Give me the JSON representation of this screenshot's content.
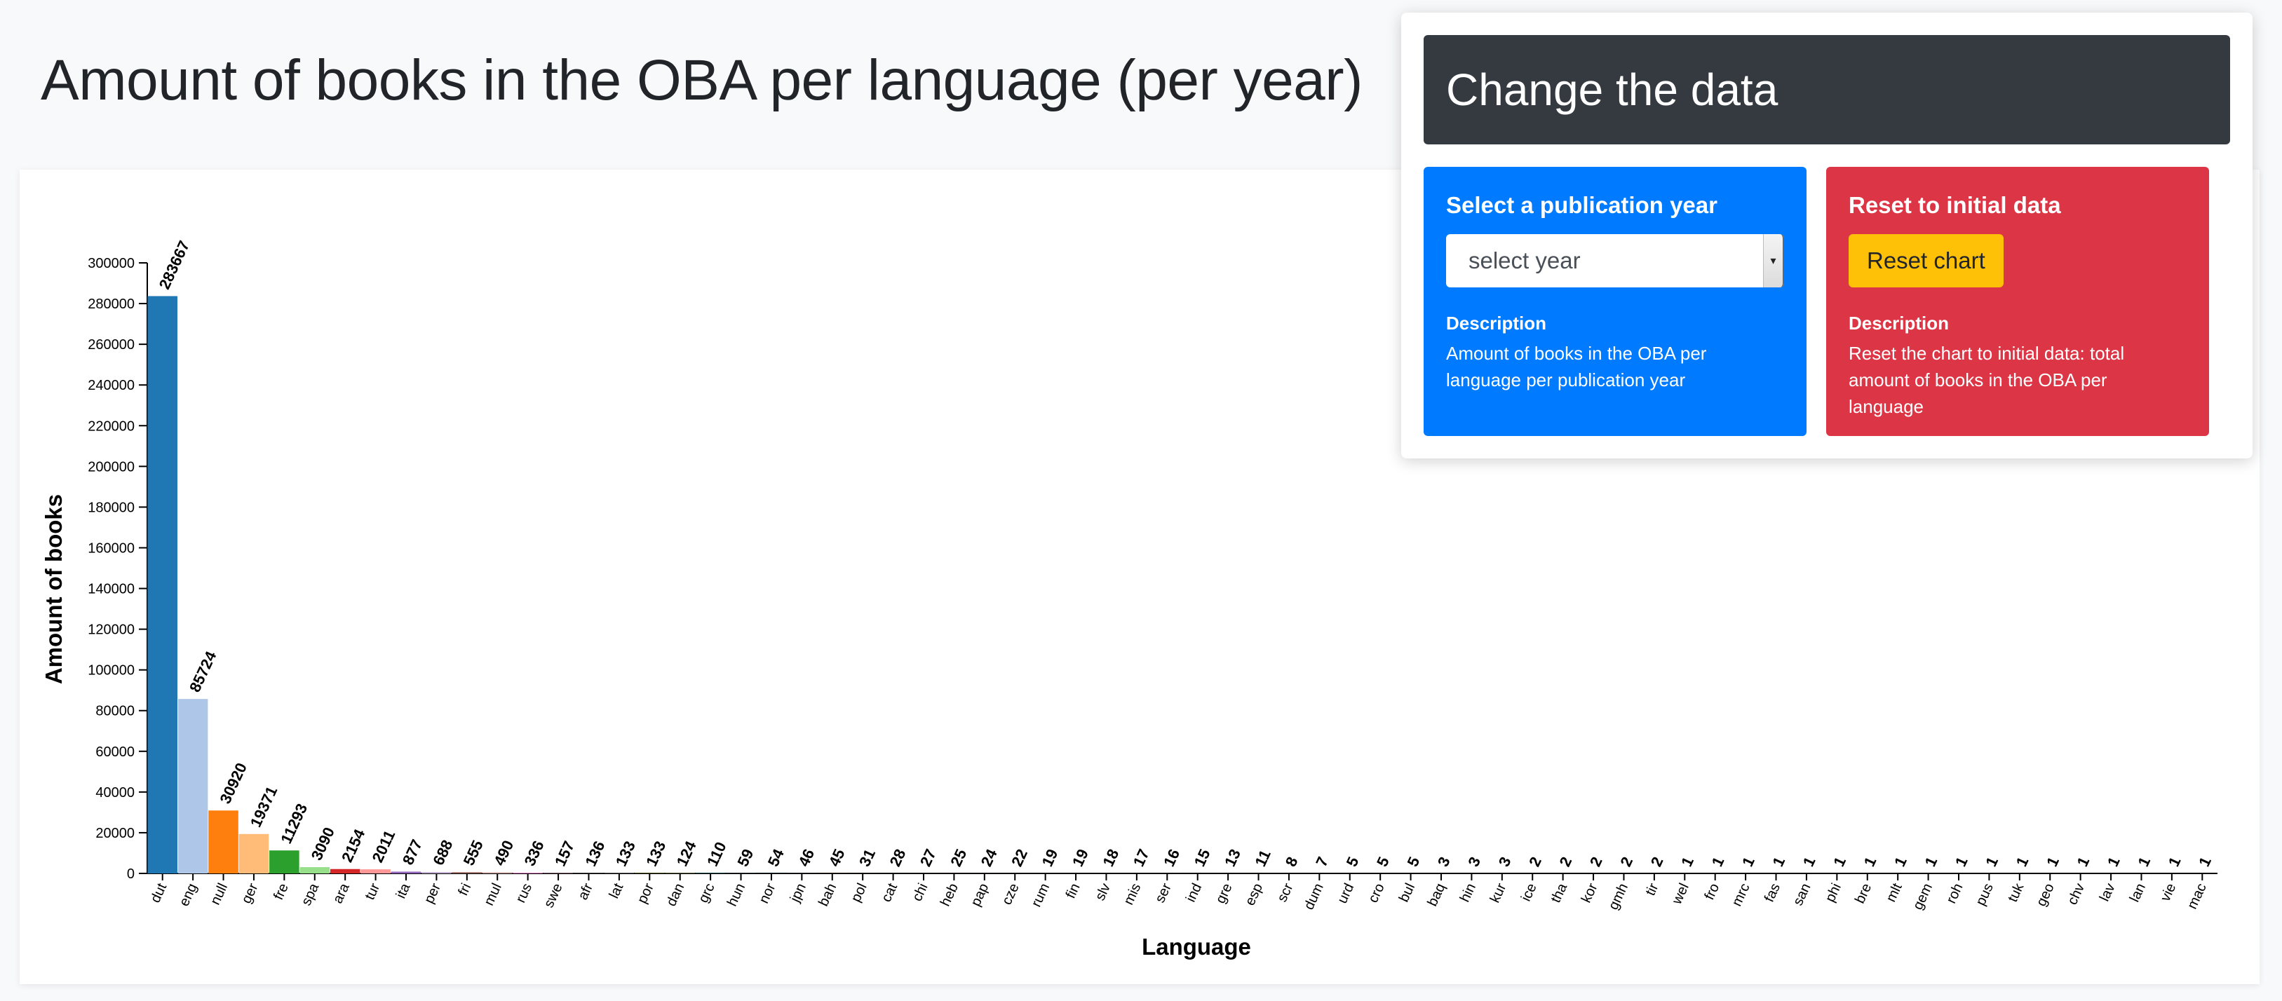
{
  "page": {
    "title": "Amount of books in the OBA per language (per year)"
  },
  "panel": {
    "title": "Change the data",
    "year_card": {
      "title": "Select a publication year",
      "select_value": "select year",
      "desc_title": "Description",
      "desc_text": "Amount of books in the OBA per language per publication year"
    },
    "reset_card": {
      "title": "Reset to initial data",
      "button_label": "Reset chart",
      "desc_title": "Description",
      "desc_text": "Reset the chart to initial data: total amount of books in the OBA per language"
    },
    "colors": {
      "header": "#343a40",
      "blue": "#007bff",
      "red": "#dc3545",
      "button": "#ffc107"
    }
  },
  "chart_data": {
    "type": "bar",
    "xlabel": "Language",
    "ylabel": "Amount of books",
    "ylim": [
      0,
      300000
    ],
    "yticks": [
      "0",
      "20000",
      "40000",
      "60000",
      "80000",
      "100000",
      "120000",
      "140000",
      "160000",
      "180000",
      "200000",
      "220000",
      "240000",
      "260000",
      "280000",
      "300000"
    ],
    "categories": [
      "dut",
      "eng",
      "null",
      "ger",
      "fre",
      "spa",
      "ara",
      "tur",
      "ita",
      "per",
      "fri",
      "mul",
      "rus",
      "swe",
      "afr",
      "lat",
      "por",
      "dan",
      "grc",
      "hun",
      "nor",
      "jpn",
      "bah",
      "pol",
      "cat",
      "chi",
      "heb",
      "pap",
      "cze",
      "rum",
      "fin",
      "slv",
      "mis",
      "ser",
      "ind",
      "gre",
      "esp",
      "scr",
      "dum",
      "urd",
      "cro",
      "bul",
      "baq",
      "hin",
      "kur",
      "ice",
      "tha",
      "kor",
      "gmh",
      "tir",
      "wel",
      "fro",
      "mrc",
      "fas",
      "san",
      "phi",
      "bre",
      "mlt",
      "gem",
      "roh",
      "pus",
      "tuk",
      "geo",
      "chv",
      "lav",
      "lan",
      "vie",
      "mac"
    ],
    "values": [
      283667,
      85724,
      30920,
      19371,
      11293,
      3090,
      2154,
      2011,
      877,
      688,
      555,
      490,
      336,
      157,
      136,
      133,
      133,
      124,
      110,
      59,
      54,
      46,
      45,
      31,
      28,
      27,
      25,
      24,
      22,
      19,
      19,
      18,
      17,
      16,
      15,
      13,
      11,
      8,
      7,
      5,
      5,
      5,
      3,
      3,
      3,
      2,
      2,
      2,
      2,
      2,
      1,
      1,
      1,
      1,
      1,
      1,
      1,
      1,
      1,
      1,
      1,
      1,
      1,
      1,
      1,
      1,
      1,
      1
    ],
    "colors": [
      "#1f77b4",
      "#aec7e8",
      "#ff7f0e",
      "#ffbb78",
      "#2ca02c",
      "#98df8a",
      "#d62728",
      "#ff9896",
      "#9467bd",
      "#c5b0d5",
      "#8c564b",
      "#c49c94",
      "#e377c2",
      "#f7b6d2",
      "#7f7f7f",
      "#c7c7c7",
      "#bcbd22",
      "#dbdb8d",
      "#17becf",
      "#9edae5"
    ],
    "grid": false,
    "legend": "none"
  }
}
